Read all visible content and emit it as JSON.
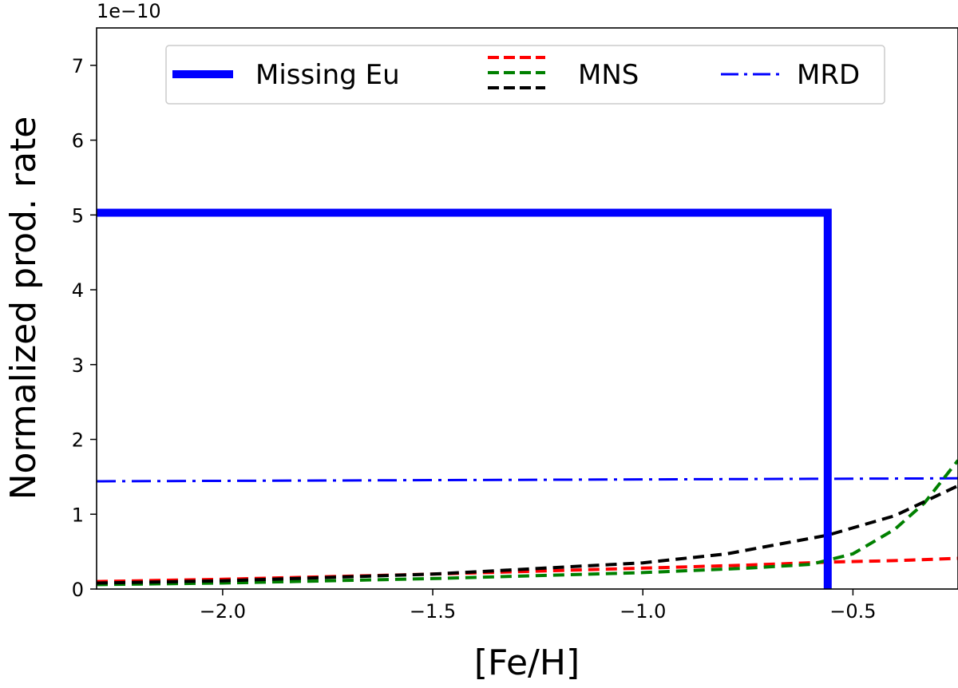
{
  "chart_data": {
    "type": "line",
    "xlabel": "[Fe/H]",
    "ylabel": "Normalized prod. rate",
    "y_offset_label": "1e−10",
    "xlim": [
      -2.3,
      -0.25
    ],
    "ylim": [
      0,
      7.5
    ],
    "x_ticks": [
      -2.0,
      -1.5,
      -1.0,
      -0.5
    ],
    "x_tick_labels": [
      "−2.0",
      "−1.5",
      "−1.0",
      "−0.5"
    ],
    "y_ticks": [
      0,
      1,
      2,
      3,
      4,
      5,
      6,
      7
    ],
    "y_tick_labels": [
      "0",
      "1",
      "2",
      "3",
      "4",
      "5",
      "6",
      "7"
    ],
    "legend_position": "top",
    "legend": [
      "Missing Eu",
      "MNS",
      "MRD"
    ],
    "series": [
      {
        "name": "Missing Eu",
        "style": "solid-thick",
        "color": "#0000ff",
        "x": [
          -2.3,
          -0.56,
          -0.56
        ],
        "y": [
          5.03,
          5.03,
          0
        ]
      },
      {
        "name": "MNS",
        "style": "dashed",
        "color": "#ff0000",
        "x": [
          -2.3,
          -2.0,
          -1.5,
          -1.0,
          -0.75,
          -0.56,
          -0.4,
          -0.25
        ],
        "y": [
          0.1,
          0.13,
          0.2,
          0.28,
          0.32,
          0.36,
          0.38,
          0.41
        ]
      },
      {
        "name": "MNS",
        "style": "dashed",
        "color": "#008000",
        "x": [
          -2.3,
          -2.0,
          -1.5,
          -1.0,
          -0.75,
          -0.6,
          -0.5,
          -0.4,
          -0.33,
          -0.25
        ],
        "y": [
          0.06,
          0.08,
          0.14,
          0.22,
          0.28,
          0.33,
          0.47,
          0.8,
          1.15,
          1.72
        ]
      },
      {
        "name": "MNS",
        "style": "dashed",
        "color": "#000000",
        "x": [
          -2.3,
          -2.0,
          -1.5,
          -1.0,
          -0.8,
          -0.56,
          -0.4,
          -0.25
        ],
        "y": [
          0.08,
          0.11,
          0.2,
          0.35,
          0.47,
          0.72,
          0.98,
          1.38
        ]
      },
      {
        "name": "MRD",
        "style": "dashdot",
        "color": "#0000ff",
        "x": [
          -2.3,
          -0.25
        ],
        "y": [
          1.44,
          1.48
        ]
      }
    ]
  }
}
